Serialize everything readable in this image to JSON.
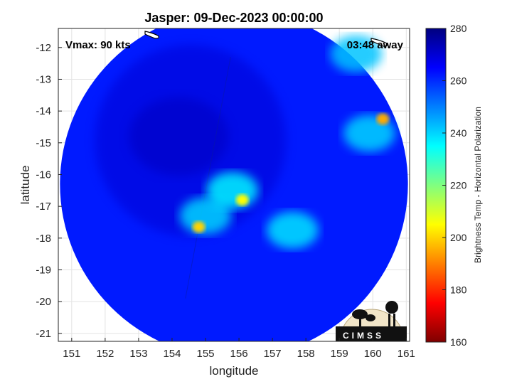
{
  "chart_data": {
    "type": "heatmap",
    "title": "Jasper: 09-Dec-2023 00:00:00",
    "annotations": {
      "vmax": "Vmax: 90 kts",
      "time_away": "03:48 away"
    },
    "xlabel": "longitude",
    "ylabel": "latitude",
    "xlim": [
      150.6,
      161.1
    ],
    "ylim": [
      -21.25,
      -11.4
    ],
    "xticks": [
      151,
      152,
      153,
      154,
      155,
      156,
      157,
      158,
      159,
      160,
      161
    ],
    "yticks": [
      -12,
      -13,
      -14,
      -15,
      -16,
      -17,
      -18,
      -19,
      -20,
      -21
    ],
    "grid": true,
    "colorbar": {
      "label": "Brightness Temp - Horizontal Polarization",
      "range": [
        160,
        280
      ],
      "ticks": [
        160,
        180,
        200,
        220,
        240,
        260,
        280
      ],
      "colormap": "jet"
    },
    "swath": {
      "center_lon": 155.85,
      "center_lat": -16.3,
      "radius_deg_lon": 5.2,
      "background_value": 262
    },
    "cold_features": [
      {
        "lon": 156.1,
        "lat": -16.8,
        "value": 205
      },
      {
        "lon": 154.8,
        "lat": -17.65,
        "value": 200
      },
      {
        "lon": 160.3,
        "lat": -14.25,
        "value": 195
      },
      {
        "lon": 157.6,
        "lat": -17.75,
        "value": 238
      },
      {
        "lon": 155.8,
        "lat": -16.5,
        "value": 236
      },
      {
        "lon": 159.9,
        "lat": -14.7,
        "value": 240
      },
      {
        "lon": 159.5,
        "lat": -12.2,
        "value": 242
      },
      {
        "lon": 155.0,
        "lat": -17.3,
        "value": 240
      }
    ],
    "logo": "CIMSS"
  }
}
